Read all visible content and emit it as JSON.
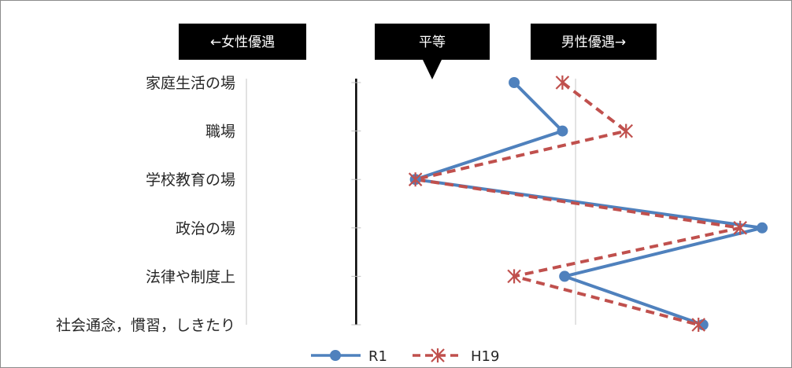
{
  "chart_data": {
    "type": "line",
    "orientation": "horizontal-categories-on-y",
    "categories": [
      "家庭生活の場",
      "職場",
      "学校教育の場",
      "政治の場",
      "法律や制度上",
      "社会通念，慣習，しきたり"
    ],
    "series": [
      {
        "name": "R1",
        "color": "#4f81bd",
        "dash": "solid",
        "marker": "circle",
        "values": [
          0.72,
          0.94,
          0.27,
          1.85,
          0.95,
          1.58
        ]
      },
      {
        "name": "H19",
        "color": "#c0504d",
        "dash": "dashed",
        "marker": "x-star",
        "values": [
          0.94,
          1.23,
          0.27,
          1.75,
          0.72,
          1.56
        ]
      }
    ],
    "xlim": [
      -0.5,
      1.9
    ],
    "equality_value": 0,
    "gridlines_x": [
      1.0
    ],
    "legend_position": "bottom",
    "callouts": {
      "left": "←女性優遇",
      "center": "平等",
      "right": "男性優遇→"
    }
  }
}
